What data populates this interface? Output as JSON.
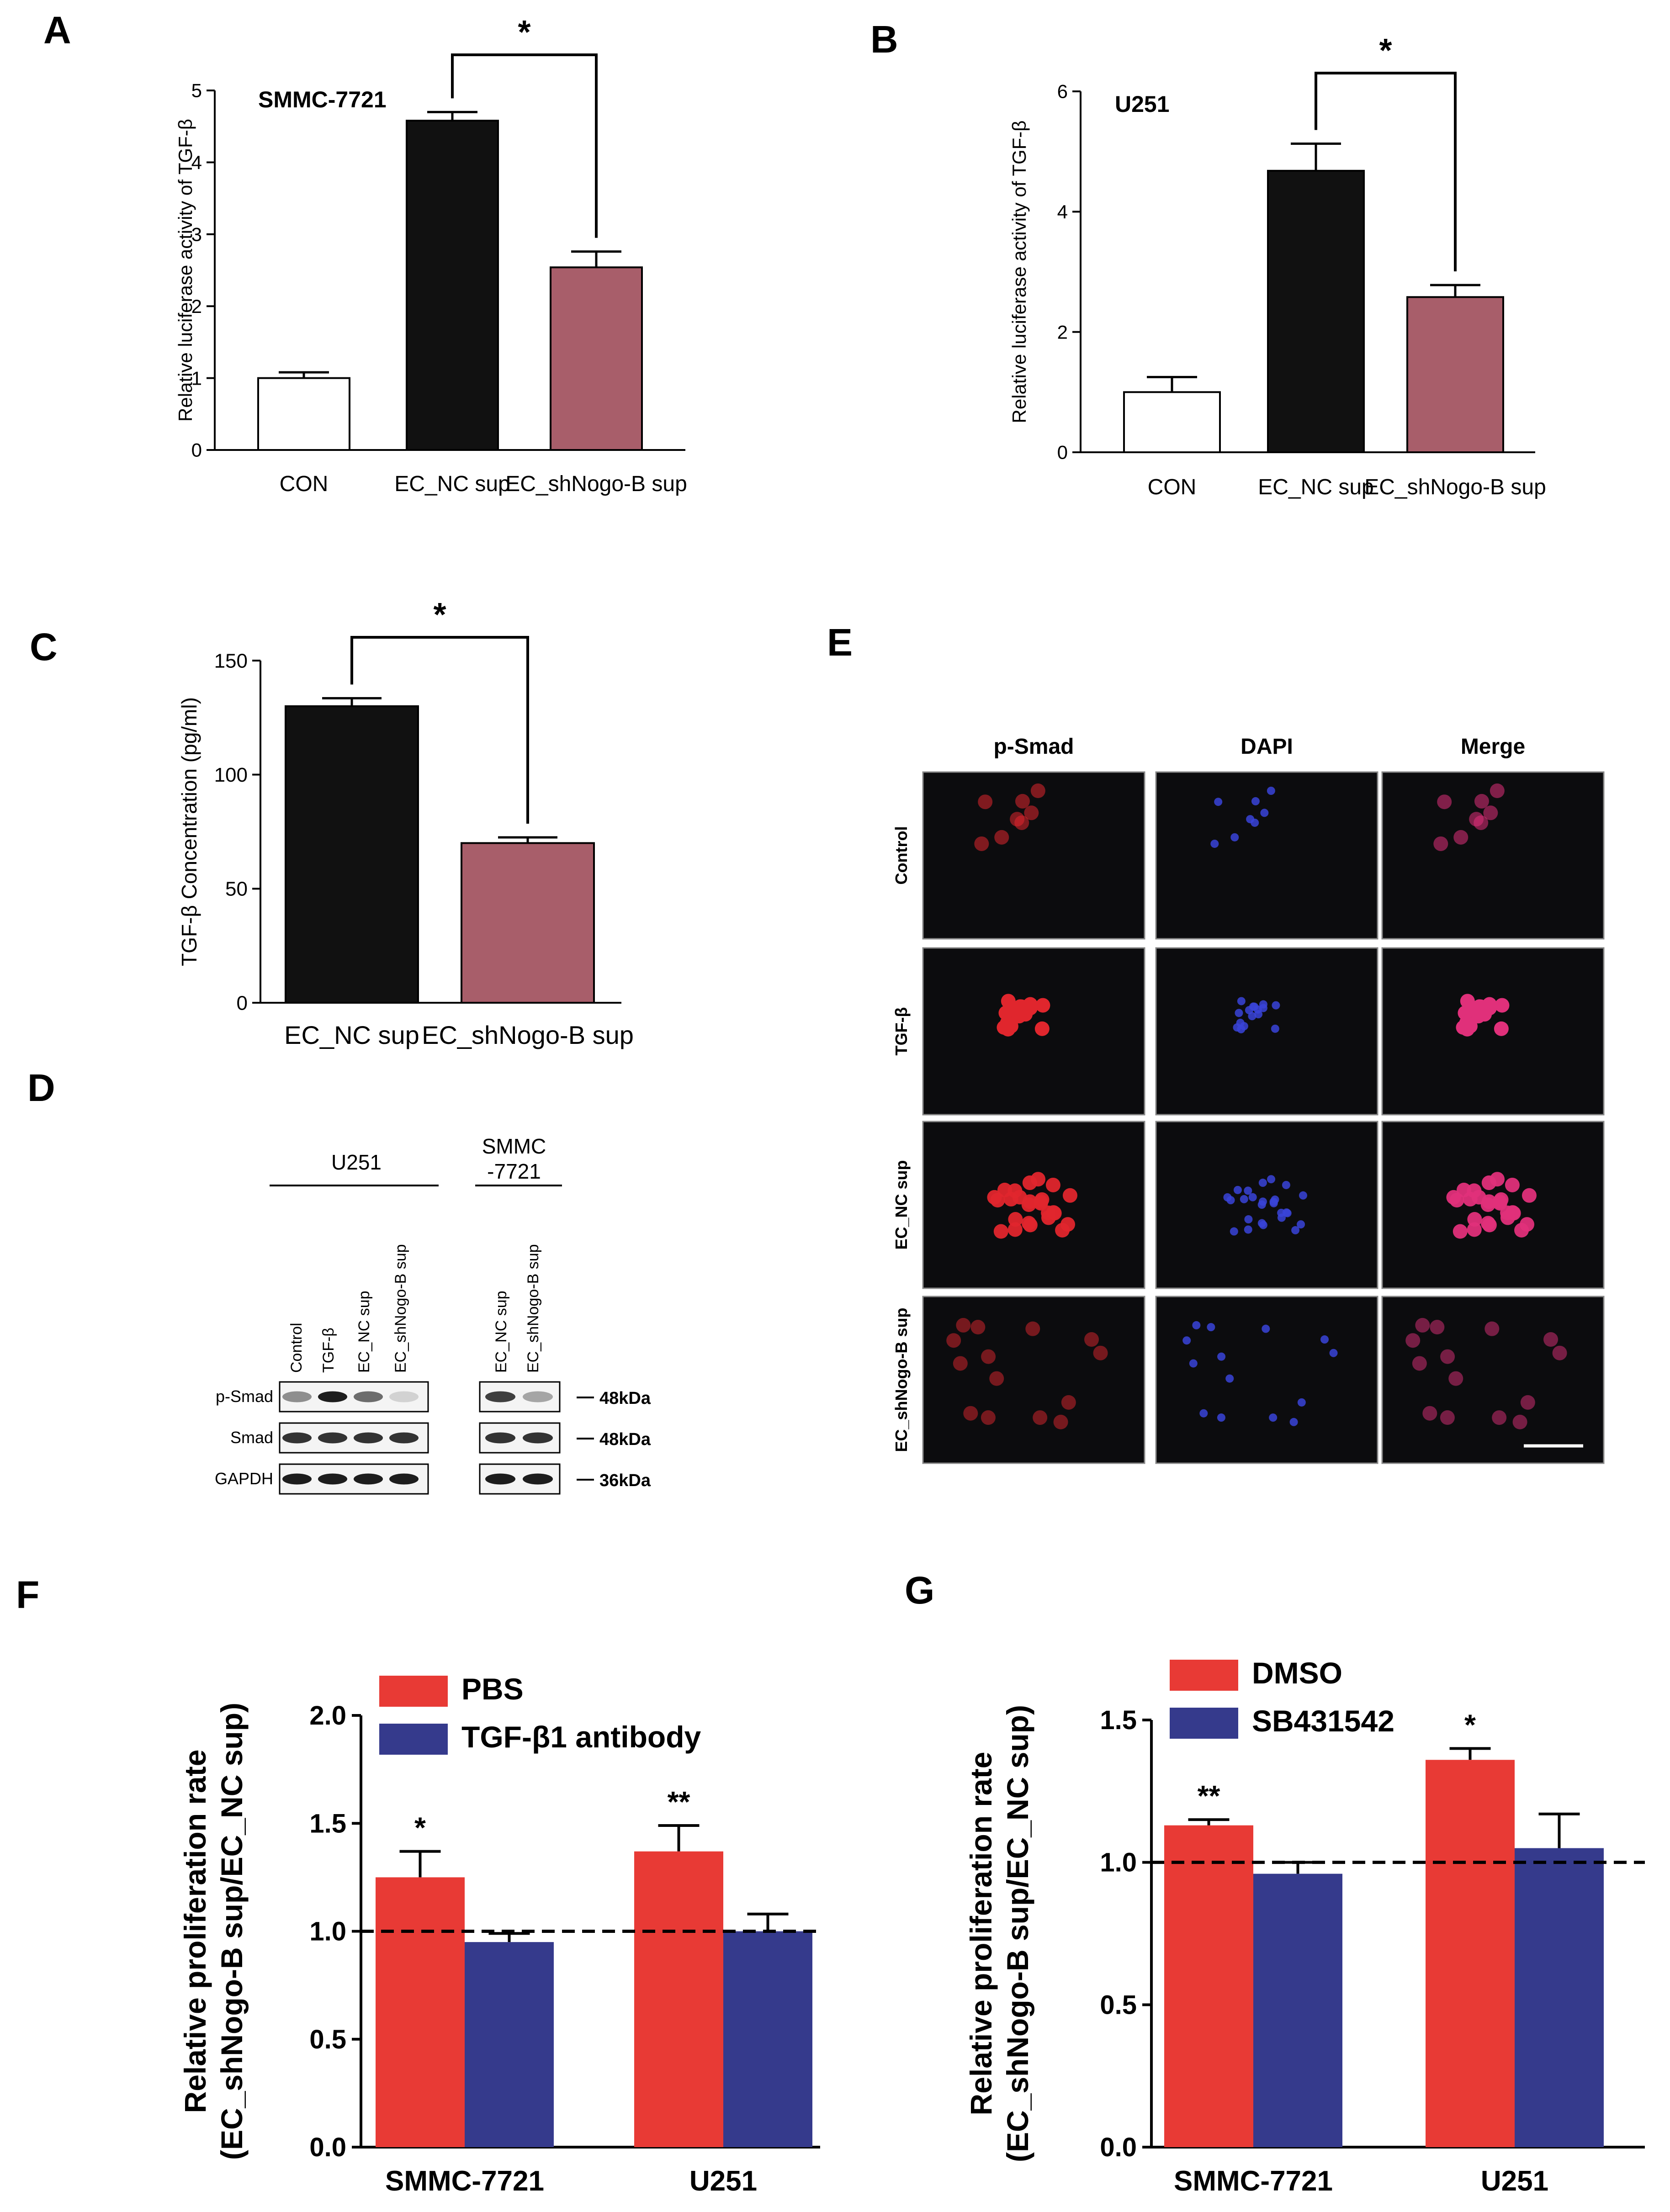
{
  "colors": {
    "black": "#111111",
    "mauve": "#A85E6A",
    "red": "#E83A35",
    "blue": "#353A8C",
    "white": "#FFFFFF"
  },
  "panels": {
    "A": {
      "label": "A"
    },
    "B": {
      "label": "B"
    },
    "C": {
      "label": "C"
    },
    "D": {
      "label": "D"
    },
    "E": {
      "label": "E"
    },
    "F": {
      "label": "F"
    },
    "G": {
      "label": "G"
    }
  },
  "chart_data": [
    {
      "id": "A",
      "type": "bar",
      "title": "SMMC-7721",
      "ylabel": "Relative luciferase activity of TGF-β",
      "ylim": [
        0,
        5
      ],
      "yticks": [
        "0",
        "1",
        "2",
        "3",
        "4",
        "5"
      ],
      "categories": [
        "CON",
        "EC_NC sup",
        "EC_shNogo-B sup"
      ],
      "values": [
        1.0,
        4.58,
        2.54
      ],
      "errors": [
        0.08,
        0.12,
        0.22
      ],
      "fills": [
        "white",
        "black",
        "mauve"
      ],
      "significance": "*"
    },
    {
      "id": "B",
      "type": "bar",
      "title": "U251",
      "ylabel": "Relative luciferase activity of TGF-β",
      "ylim": [
        0,
        6
      ],
      "yticks": [
        "0",
        "2",
        "4",
        "6"
      ],
      "categories": [
        "CON",
        "EC_NC sup",
        "EC_shNogo-B sup"
      ],
      "values": [
        1.0,
        4.68,
        2.58
      ],
      "errors": [
        0.25,
        0.45,
        0.2
      ],
      "fills": [
        "white",
        "black",
        "mauve"
      ],
      "significance": "*"
    },
    {
      "id": "C",
      "type": "bar",
      "title": "",
      "ylabel": "TGF-β  Concentration (pg/ml)",
      "ylim": [
        0,
        150
      ],
      "yticks": [
        "0",
        "50",
        "100",
        "150"
      ],
      "categories": [
        "EC_NC sup",
        "EC_shNogo-B sup"
      ],
      "values": [
        130,
        70
      ],
      "errors": [
        3.5,
        2.5
      ],
      "fills": [
        "black",
        "mauve"
      ],
      "significance": "*"
    },
    {
      "id": "F",
      "type": "bar",
      "ylabel": [
        "Relative proliferation rate",
        "(EC_shNogo-B sup/EC_NC sup)"
      ],
      "ylim": [
        0,
        2.0
      ],
      "yticks": [
        "0.0",
        "0.5",
        "1.0",
        "1.5",
        "2.0"
      ],
      "reference_line": 1.0,
      "categories": [
        "SMMC-7721",
        "U251"
      ],
      "series": [
        {
          "name": "PBS",
          "values": [
            1.25,
            1.37
          ],
          "errors": [
            0.12,
            0.12
          ],
          "color": "red"
        },
        {
          "name": "TGF-β1 antibody",
          "values": [
            0.95,
            1.0
          ],
          "errors": [
            0.04,
            0.08
          ],
          "color": "blue"
        }
      ],
      "annotations": [
        "*",
        "**"
      ]
    },
    {
      "id": "G",
      "type": "bar",
      "ylabel": [
        "Relative proliferation rate",
        "(EC_shNogo-B sup/EC_NC sup)"
      ],
      "ylim": [
        0,
        1.5
      ],
      "yticks": [
        "0.0",
        "0.5",
        "1.0",
        "1.5"
      ],
      "reference_line": 1.0,
      "categories": [
        "SMMC-7721",
        "U251"
      ],
      "series": [
        {
          "name": "DMSO",
          "values": [
            1.13,
            1.36
          ],
          "errors": [
            0.02,
            0.04
          ],
          "color": "red"
        },
        {
          "name": "SB431542",
          "values": [
            0.96,
            1.05
          ],
          "errors": [
            0.04,
            0.12
          ],
          "color": "blue"
        }
      ],
      "annotations": [
        "**",
        "*"
      ]
    }
  ],
  "western": {
    "group_u251": "U251",
    "group_smmc_1": "SMMC",
    "group_smmc_2": "-7721",
    "lanes_u251": [
      "Control",
      "TGF-β",
      "EC_NC sup",
      "EC_shNogo-B sup"
    ],
    "lanes_smmc": [
      "EC_NC sup",
      "EC_shNogo-B sup"
    ],
    "rows": [
      {
        "name": "p-Smad",
        "size": "48kDa"
      },
      {
        "name": "Smad",
        "size": "48kDa"
      },
      {
        "name": "GAPDH",
        "size": "36kDa"
      }
    ]
  },
  "micrographs": {
    "columns": [
      "p-Smad",
      "DAPI",
      "Merge"
    ],
    "rows": [
      "Control",
      "TGF-β",
      "EC_NC sup",
      "EC_shNogo-B sup"
    ]
  }
}
